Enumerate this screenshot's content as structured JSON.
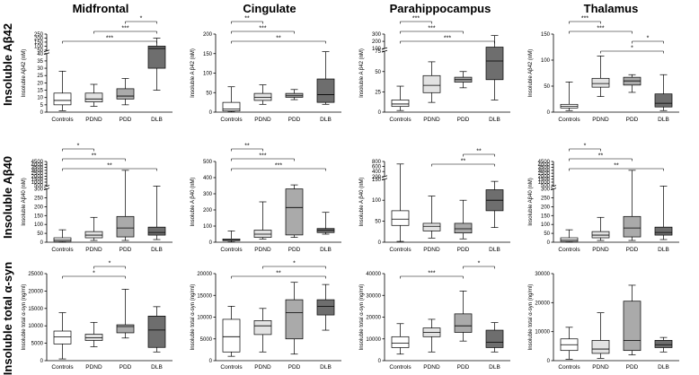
{
  "column_titles": [
    "Midfrontal",
    "Cingulate",
    "Parahippocampus",
    "Thalamus"
  ],
  "row_titles": [
    "Insoluble Aβ42",
    "Insoluble Aβ40",
    "Insoluble total α-syn"
  ],
  "group_colors": [
    "#ffffff",
    "#e2e2e2",
    "#aaaaaa",
    "#6e6e6e"
  ],
  "chart_data": [
    {
      "type": "box",
      "row": 0,
      "col": 0,
      "ylabel": "Insoluble Aβ42 (nM)",
      "categories": [
        "Controls",
        "PDND",
        "PDD",
        "DLB"
      ],
      "yscale": "broken",
      "segments": [
        {
          "range": [
            0,
            40
          ],
          "ticks": [
            0,
            5,
            10,
            15,
            20,
            25,
            30,
            35,
            40
          ],
          "frac": 0.75
        },
        {
          "range": [
            40,
            250
          ],
          "ticks": [
            50,
            100,
            150,
            200,
            250
          ],
          "frac": 0.25
        }
      ],
      "boxes": [
        [
          1,
          5,
          8,
          13,
          28
        ],
        [
          4,
          7,
          9,
          13,
          19
        ],
        [
          5,
          9,
          11,
          16,
          23
        ],
        [
          15,
          30,
          70,
          100,
          200
        ]
      ],
      "sig": [
        {
          "a": 2,
          "b": 3,
          "label": "*"
        },
        {
          "a": 1,
          "b": 3,
          "label": "***"
        },
        {
          "a": 0,
          "b": 3,
          "label": "***"
        }
      ]
    },
    {
      "type": "box",
      "row": 0,
      "col": 1,
      "ylabel": "Insoluble A β42 (nM)",
      "categories": [
        "Controls",
        "PDND",
        "PDD",
        "DLB"
      ],
      "yscale": "linear",
      "range": [
        0,
        200
      ],
      "ticks": [
        0,
        50,
        100,
        150,
        200
      ],
      "boxes": [
        [
          1,
          3,
          8,
          25,
          65
        ],
        [
          20,
          30,
          38,
          48,
          70
        ],
        [
          32,
          38,
          42,
          48,
          58
        ],
        [
          20,
          25,
          45,
          85,
          155
        ]
      ],
      "sig": [
        {
          "a": 0,
          "b": 1,
          "label": "**"
        },
        {
          "a": 0,
          "b": 2,
          "label": "***"
        },
        {
          "a": 0,
          "b": 3,
          "label": "**"
        }
      ]
    },
    {
      "type": "box",
      "row": 0,
      "col": 2,
      "ylabel": "Insoluble A β42 (nM)",
      "categories": [
        "Controls",
        "PDND",
        "PDD",
        "DLB"
      ],
      "yscale": "broken",
      "segments": [
        {
          "range": [
            0,
            75
          ],
          "ticks": [
            0,
            25,
            50,
            75
          ],
          "frac": 0.78
        },
        {
          "range": [
            100,
            300
          ],
          "ticks": [
            100,
            200,
            300
          ],
          "frac": 0.22
        }
      ],
      "boxes": [
        [
          2,
          7,
          10,
          15,
          32
        ],
        [
          12,
          24,
          33,
          45,
          62
        ],
        [
          30,
          37,
          40,
          43,
          50
        ],
        [
          15,
          40,
          63,
          120,
          280
        ]
      ],
      "sig": [
        {
          "a": 0,
          "b": 1,
          "label": "***"
        },
        {
          "a": 0,
          "b": 2,
          "label": "***"
        },
        {
          "a": 0,
          "b": 3,
          "label": "***"
        }
      ]
    },
    {
      "type": "box",
      "row": 0,
      "col": 3,
      "ylabel": "Insoluble Aβ42 (nM)",
      "categories": [
        "Controls",
        "PDND",
        "PDD",
        "DLB"
      ],
      "yscale": "linear",
      "range": [
        0,
        150
      ],
      "ticks": [
        0,
        50,
        100,
        150
      ],
      "boxes": [
        [
          3,
          8,
          11,
          15,
          58
        ],
        [
          30,
          48,
          55,
          65,
          108
        ],
        [
          38,
          52,
          60,
          67,
          72
        ],
        [
          3,
          10,
          17,
          35,
          72
        ]
      ],
      "sig": [
        {
          "a": 0,
          "b": 1,
          "label": "***"
        },
        {
          "a": 0,
          "b": 2,
          "label": "***"
        },
        {
          "a": 2,
          "b": 3,
          "label": "*"
        },
        {
          "a": 1,
          "b": 3,
          "label": "*"
        }
      ]
    },
    {
      "type": "box",
      "row": 1,
      "col": 0,
      "ylabel": "Insoluble Aβ40 (nM)",
      "categories": [
        "Controls",
        "PDND",
        "PDD",
        "DLB"
      ],
      "yscale": "broken",
      "segments": [
        {
          "range": [
            0,
            300
          ],
          "ticks": [
            0,
            50,
            100,
            150,
            200,
            250,
            300
          ],
          "frac": 0.66
        },
        {
          "range": [
            300,
            4500
          ],
          "ticks": [
            500,
            1000,
            1500,
            2000,
            2500,
            3000,
            3500,
            4000,
            4500
          ],
          "frac": 0.34
        }
      ],
      "boxes": [
        [
          1,
          5,
          12,
          25,
          70
        ],
        [
          10,
          25,
          40,
          60,
          140
        ],
        [
          10,
          30,
          80,
          145,
          3000
        ],
        [
          15,
          40,
          55,
          85,
          330
        ]
      ],
      "sig": [
        {
          "a": 0,
          "b": 1,
          "label": "*"
        },
        {
          "a": 0,
          "b": 2,
          "label": "**"
        },
        {
          "a": 0,
          "b": 3,
          "label": "**"
        }
      ]
    },
    {
      "type": "box",
      "row": 1,
      "col": 1,
      "ylabel": "Insoluble A β40 (nM)",
      "categories": [
        "Controls",
        "PDND",
        "PDD",
        "DLB"
      ],
      "yscale": "linear",
      "range": [
        0,
        500
      ],
      "ticks": [
        0,
        100,
        200,
        300,
        400,
        500
      ],
      "boxes": [
        [
          2,
          10,
          15,
          20,
          70
        ],
        [
          20,
          30,
          50,
          75,
          250
        ],
        [
          30,
          45,
          215,
          330,
          355
        ],
        [
          50,
          60,
          75,
          85,
          185
        ]
      ],
      "sig": [
        {
          "a": 0,
          "b": 1,
          "label": "**"
        },
        {
          "a": 0,
          "b": 2,
          "label": "***"
        },
        {
          "a": 0,
          "b": 3,
          "label": "***"
        }
      ]
    },
    {
      "type": "box",
      "row": 1,
      "col": 2,
      "ylabel": "Insoluble A β40 (nM)",
      "categories": [
        "Controls",
        "PDND",
        "PDD",
        "DLB"
      ],
      "yscale": "broken",
      "segments": [
        {
          "range": [
            0,
            150
          ],
          "ticks": [
            0,
            50,
            100,
            150
          ],
          "frac": 0.78
        },
        {
          "range": [
            200,
            800
          ],
          "ticks": [
            200,
            400,
            600,
            800
          ],
          "frac": 0.22
        }
      ],
      "boxes": [
        [
          2,
          40,
          55,
          75,
          700
        ],
        [
          10,
          27,
          38,
          45,
          110
        ],
        [
          8,
          22,
          32,
          45,
          100
        ],
        [
          35,
          75,
          100,
          125,
          145
        ]
      ],
      "sig": [
        {
          "a": 2,
          "b": 3,
          "label": "**"
        },
        {
          "a": 1,
          "b": 3,
          "label": "**"
        }
      ]
    },
    {
      "type": "box",
      "row": 1,
      "col": 3,
      "ylabel": "Insoluble Aβ40 (nM)",
      "categories": [
        "Controls",
        "PDND",
        "PDD",
        "DLB"
      ],
      "yscale": "broken",
      "segments": [
        {
          "range": [
            0,
            300
          ],
          "ticks": [
            0,
            50,
            100,
            150,
            200,
            250,
            300
          ],
          "frac": 0.66
        },
        {
          "range": [
            300,
            4500
          ],
          "ticks": [
            500,
            1000,
            1500,
            2000,
            2500,
            3000,
            3500,
            4000,
            4500
          ],
          "frac": 0.34
        }
      ],
      "boxes": [
        [
          1,
          5,
          12,
          25,
          70
        ],
        [
          10,
          25,
          40,
          60,
          140
        ],
        [
          10,
          30,
          80,
          145,
          3000
        ],
        [
          15,
          40,
          55,
          85,
          330
        ]
      ],
      "sig": [
        {
          "a": 0,
          "b": 1,
          "label": "*"
        },
        {
          "a": 0,
          "b": 2,
          "label": "**"
        },
        {
          "a": 0,
          "b": 3,
          "label": "**"
        }
      ]
    },
    {
      "type": "box",
      "row": 2,
      "col": 0,
      "ylabel": "Insoluble total α-syn (ng/ml)",
      "categories": [
        "Controls",
        "PDND",
        "PDD",
        "DLB"
      ],
      "yscale": "linear",
      "range": [
        0,
        25000
      ],
      "ticks": [
        0,
        5000,
        10000,
        15000,
        20000,
        25000
      ],
      "boxes": [
        [
          500,
          4800,
          6800,
          8500,
          13800
        ],
        [
          4000,
          5800,
          6600,
          7600,
          11000
        ],
        [
          6500,
          8000,
          9800,
          10300,
          20500
        ],
        [
          2500,
          3800,
          8800,
          12800,
          15500
        ]
      ],
      "sig": [
        {
          "a": 1,
          "b": 2,
          "label": "*"
        },
        {
          "a": 0,
          "b": 2,
          "label": "*"
        }
      ]
    },
    {
      "type": "box",
      "row": 2,
      "col": 1,
      "ylabel": "Insoluble total α-syn (ng/ml)",
      "categories": [
        "Controls",
        "PDND",
        "PDD",
        "DLB"
      ],
      "yscale": "linear",
      "range": [
        0,
        20000
      ],
      "ticks": [
        0,
        5000,
        10000,
        15000,
        20000
      ],
      "boxes": [
        [
          1000,
          2000,
          5500,
          9500,
          12500
        ],
        [
          2000,
          6000,
          8000,
          9200,
          12000
        ],
        [
          1500,
          5000,
          11000,
          14000,
          18000
        ],
        [
          7000,
          10500,
          12500,
          14000,
          17500
        ]
      ],
      "sig": [
        {
          "a": 1,
          "b": 3,
          "label": "*"
        },
        {
          "a": 0,
          "b": 3,
          "label": "**"
        }
      ]
    },
    {
      "type": "box",
      "row": 2,
      "col": 2,
      "ylabel": "Insoluble total α-syn (ng/ml)",
      "categories": [
        "Controls",
        "PDND",
        "PDD",
        "DLB"
      ],
      "yscale": "linear",
      "range": [
        0,
        40000
      ],
      "ticks": [
        0,
        10000,
        20000,
        30000,
        40000
      ],
      "boxes": [
        [
          3000,
          6000,
          8000,
          11000,
          17000
        ],
        [
          4000,
          11000,
          13000,
          15000,
          19000
        ],
        [
          9000,
          13000,
          16000,
          21500,
          32000
        ],
        [
          4000,
          6000,
          8500,
          14000,
          17500
        ]
      ],
      "sig": [
        {
          "a": 2,
          "b": 3,
          "label": "*"
        },
        {
          "a": 0,
          "b": 2,
          "label": "***"
        }
      ]
    },
    {
      "type": "box",
      "row": 2,
      "col": 3,
      "ylabel": "Insoluble total α-syn (ng/ml)",
      "categories": [
        "Controls",
        "PDND",
        "PDD",
        "DLB"
      ],
      "yscale": "linear",
      "range": [
        0,
        30000
      ],
      "ticks": [
        0,
        10000,
        20000,
        30000
      ],
      "boxes": [
        [
          500,
          3500,
          5500,
          7500,
          11500
        ],
        [
          800,
          2500,
          4000,
          7000,
          16500
        ],
        [
          2000,
          3500,
          7000,
          20500,
          26000
        ],
        [
          3000,
          4500,
          5500,
          7000,
          8000
        ]
      ],
      "sig": []
    }
  ]
}
